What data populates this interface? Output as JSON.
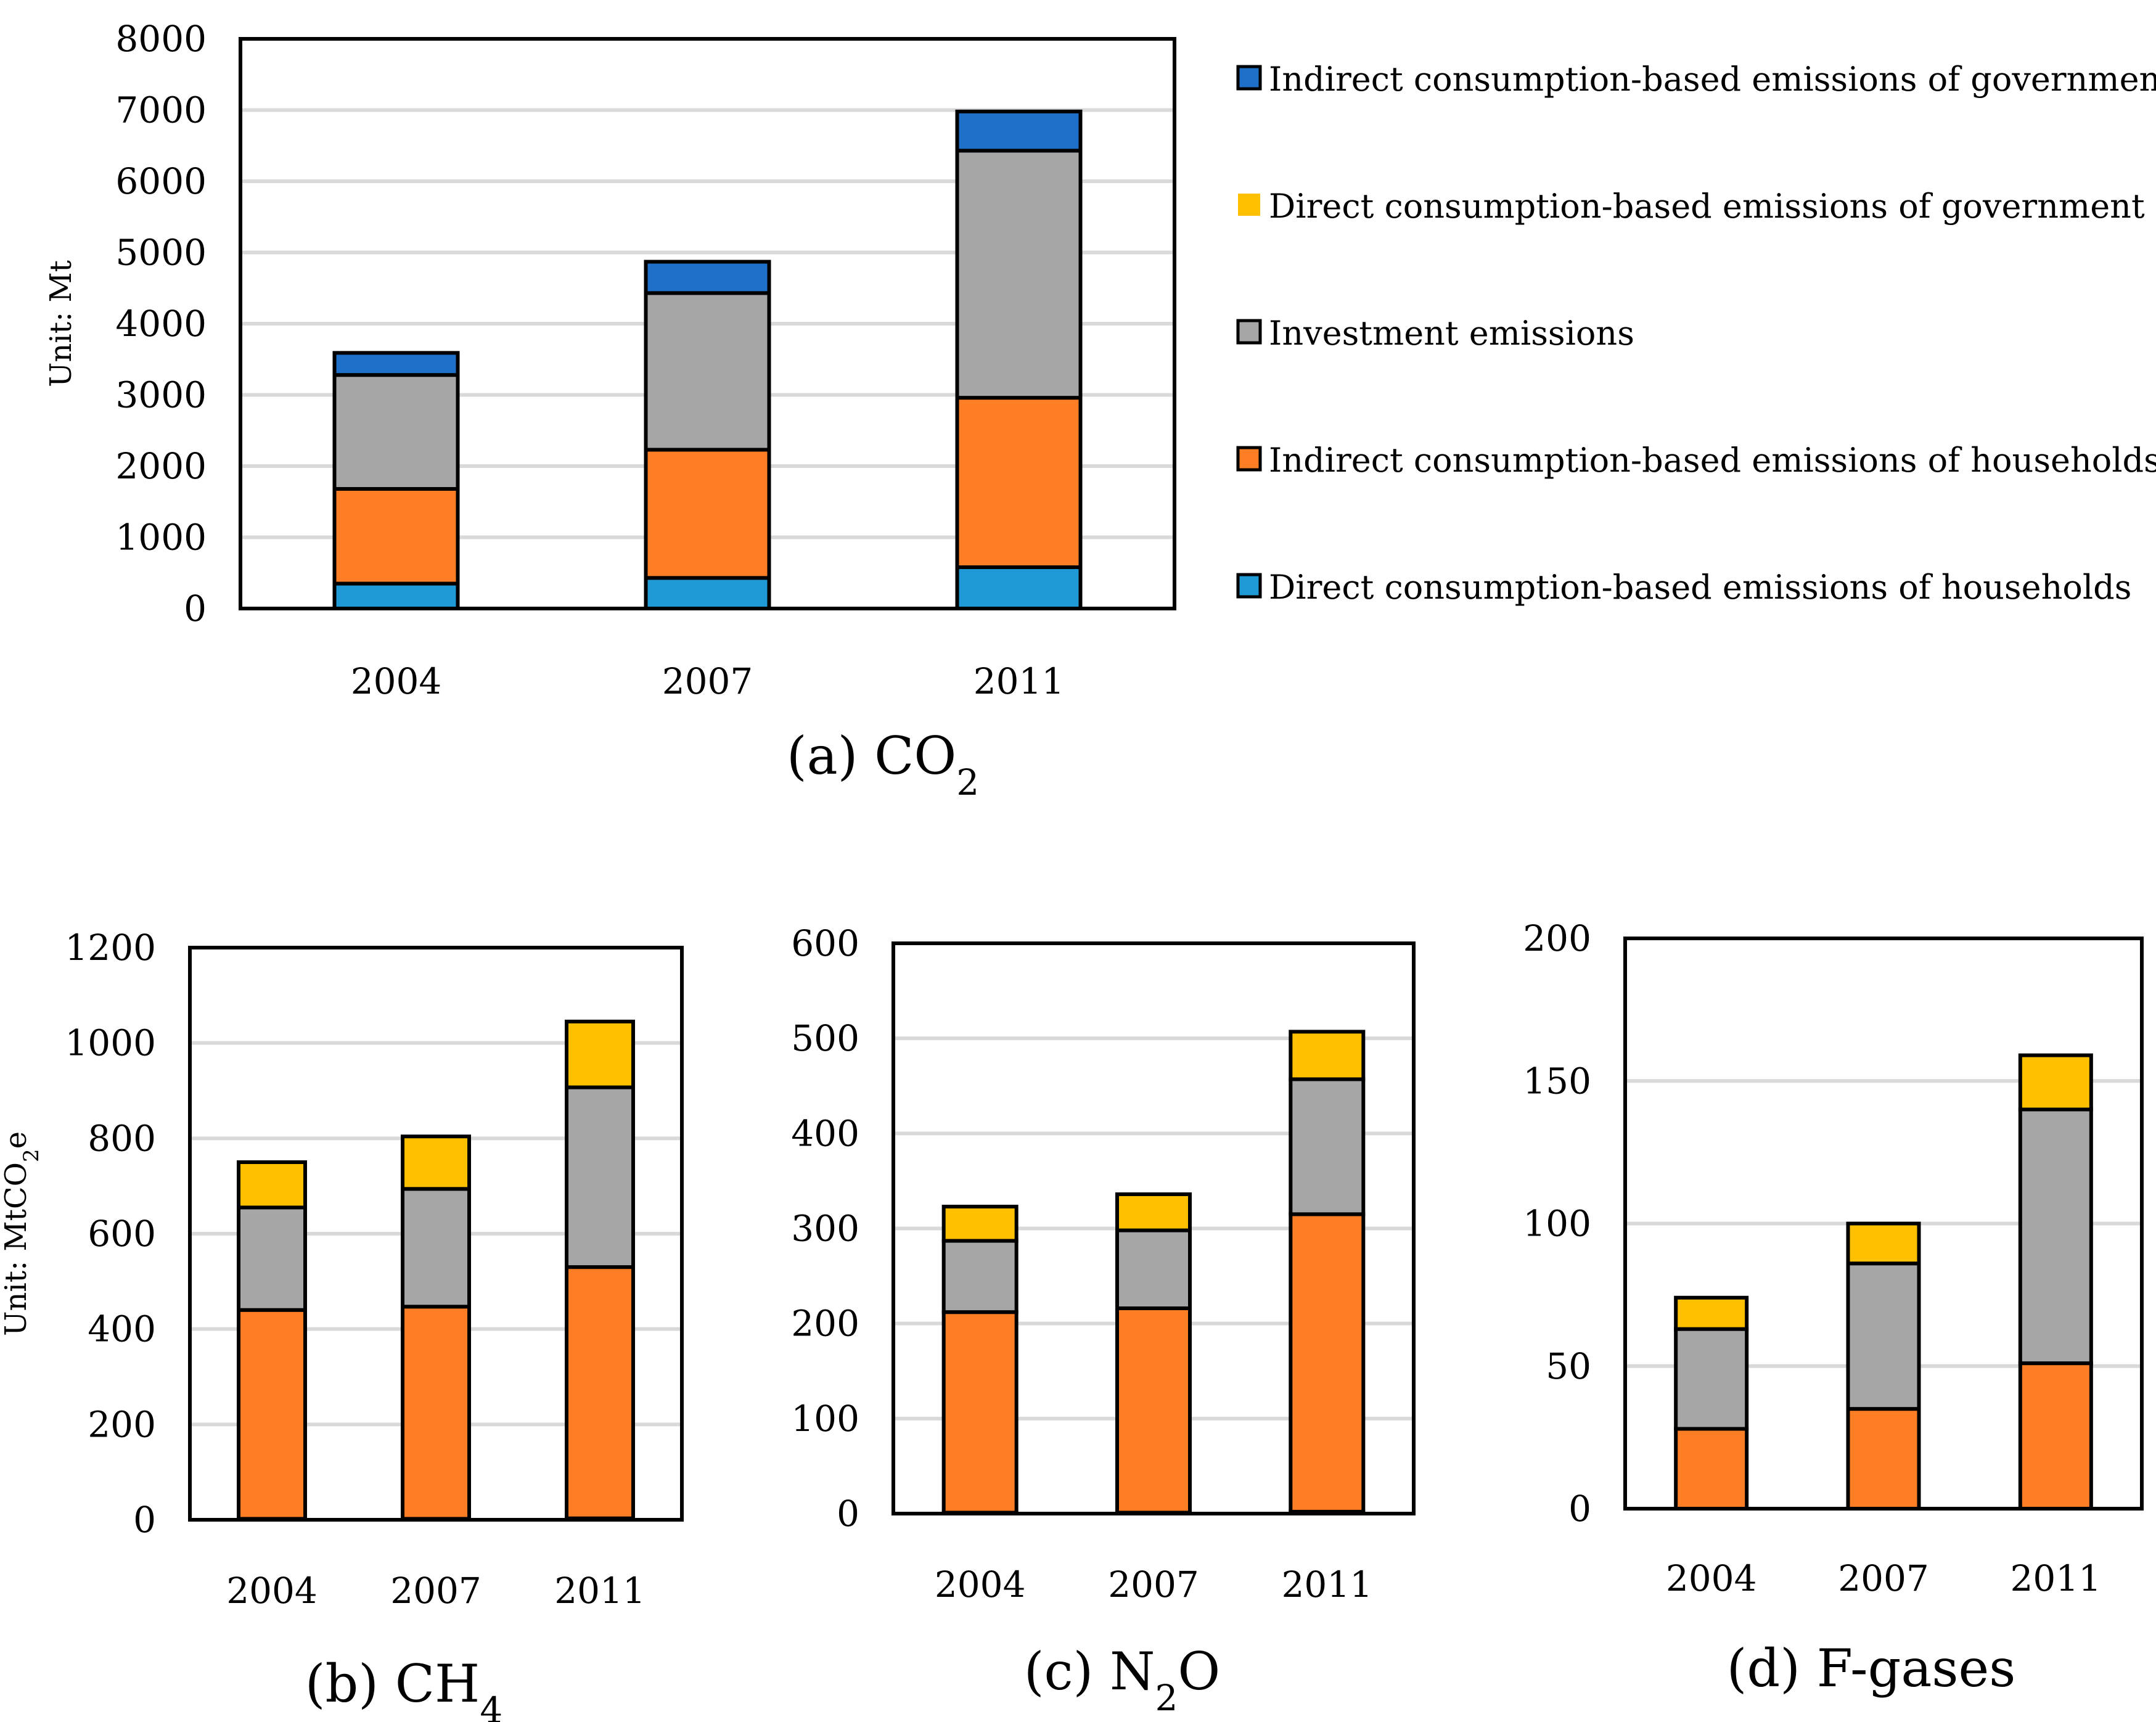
{
  "colors": {
    "direct_households": "#1f9ad6",
    "indirect_households": "#fd7e24",
    "investment": "#a6a6a6",
    "direct_government": "#ffc000",
    "indirect_government": "#1e70c8",
    "grid": "#d9d9d9",
    "border": "#000000"
  },
  "legend": [
    {
      "key": "indirect_government",
      "label": "Indirect consumption-based emissions of government"
    },
    {
      "key": "direct_government",
      "label": "Direct consumption-based emissions of government"
    },
    {
      "key": "investment",
      "label": "Investment emissions"
    },
    {
      "key": "indirect_households",
      "label": "Indirect consumption-based emissions of households"
    },
    {
      "key": "direct_households",
      "label": "Direct consumption-based emissions of households"
    }
  ],
  "chart_data": [
    {
      "id": "co2",
      "type": "bar",
      "stacked": true,
      "caption": {
        "main": "(a) CO",
        "sub": "2",
        "tail": ""
      },
      "ylabel": {
        "main": "Unit: Mt",
        "sub": "",
        "tail": ""
      },
      "ylim": [
        0,
        8000
      ],
      "yticks": [
        0,
        1000,
        2000,
        3000,
        4000,
        5000,
        6000,
        7000,
        8000
      ],
      "grid": true,
      "categories": [
        "2004",
        "2007",
        "2011"
      ],
      "series": [
        {
          "key": "direct_households",
          "name": "Direct consumption-based emissions of households",
          "values": [
            350,
            430,
            580
          ]
        },
        {
          "key": "indirect_households",
          "name": "Indirect consumption-based emissions of households",
          "values": [
            1330,
            1800,
            2380
          ]
        },
        {
          "key": "investment",
          "name": "Investment emissions",
          "values": [
            1600,
            2200,
            3470
          ]
        },
        {
          "key": "direct_government",
          "name": "Direct consumption-based emissions of government",
          "values": [
            0,
            0,
            0
          ]
        },
        {
          "key": "indirect_government",
          "name": "Indirect consumption-based emissions of government",
          "values": [
            310,
            440,
            550
          ]
        }
      ]
    },
    {
      "id": "ch4",
      "type": "bar",
      "stacked": true,
      "caption": {
        "main": "(b) CH",
        "sub": "4",
        "tail": ""
      },
      "ylabel": {
        "main": "Unit: MtCO",
        "sub": "2",
        "tail": "e"
      },
      "ylim": [
        0,
        1200
      ],
      "yticks": [
        0,
        200,
        400,
        600,
        800,
        1000,
        1200
      ],
      "grid": true,
      "categories": [
        "2004",
        "2007",
        "2011"
      ],
      "series": [
        {
          "key": "direct_households",
          "name": "Direct consumption-based emissions of households",
          "values": [
            2,
            2,
            3
          ]
        },
        {
          "key": "indirect_households",
          "name": "Indirect consumption-based emissions of households",
          "values": [
            438,
            445,
            527
          ]
        },
        {
          "key": "investment",
          "name": "Investment emissions",
          "values": [
            215,
            247,
            377
          ]
        },
        {
          "key": "direct_government",
          "name": "Direct consumption-based emissions of government",
          "values": [
            95,
            110,
            138
          ]
        },
        {
          "key": "indirect_government",
          "name": "Indirect consumption-based emissions of government",
          "values": [
            0,
            0,
            0
          ]
        }
      ]
    },
    {
      "id": "n2o",
      "type": "bar",
      "stacked": true,
      "caption": {
        "main": "(c) N",
        "sub": "2",
        "tail": "O"
      },
      "ylabel": {
        "main": "",
        "sub": "",
        "tail": ""
      },
      "ylim": [
        0,
        600
      ],
      "yticks": [
        0,
        100,
        200,
        300,
        400,
        500,
        600
      ],
      "grid": true,
      "categories": [
        "2004",
        "2007",
        "2011"
      ],
      "series": [
        {
          "key": "direct_households",
          "name": "Direct consumption-based emissions of households",
          "values": [
            1,
            1,
            2
          ]
        },
        {
          "key": "indirect_households",
          "name": "Indirect consumption-based emissions of households",
          "values": [
            211,
            215,
            313
          ]
        },
        {
          "key": "investment",
          "name": "Investment emissions",
          "values": [
            75,
            82,
            142
          ]
        },
        {
          "key": "direct_government",
          "name": "Direct consumption-based emissions of government",
          "values": [
            36,
            38,
            50
          ]
        },
        {
          "key": "indirect_government",
          "name": "Indirect consumption-based emissions of government",
          "values": [
            0,
            0,
            0
          ]
        }
      ]
    },
    {
      "id": "fgases",
      "type": "bar",
      "stacked": true,
      "caption": {
        "main": "(d) F-gases",
        "sub": "",
        "tail": ""
      },
      "ylabel": {
        "main": "",
        "sub": "",
        "tail": ""
      },
      "ylim": [
        0,
        200
      ],
      "yticks": [
        0,
        50,
        100,
        150,
        200
      ],
      "grid": true,
      "categories": [
        "2004",
        "2007",
        "2011"
      ],
      "series": [
        {
          "key": "direct_households",
          "name": "Direct consumption-based emissions of households",
          "values": [
            0,
            0,
            0
          ]
        },
        {
          "key": "indirect_households",
          "name": "Indirect consumption-based emissions of households",
          "values": [
            28,
            35,
            51
          ]
        },
        {
          "key": "investment",
          "name": "Investment emissions",
          "values": [
            35,
            51,
            89
          ]
        },
        {
          "key": "direct_government",
          "name": "Direct consumption-based emissions of government",
          "values": [
            11,
            14,
            19
          ]
        },
        {
          "key": "indirect_government",
          "name": "Indirect consumption-based emissions of government",
          "values": [
            0,
            0,
            0
          ]
        }
      ]
    }
  ]
}
